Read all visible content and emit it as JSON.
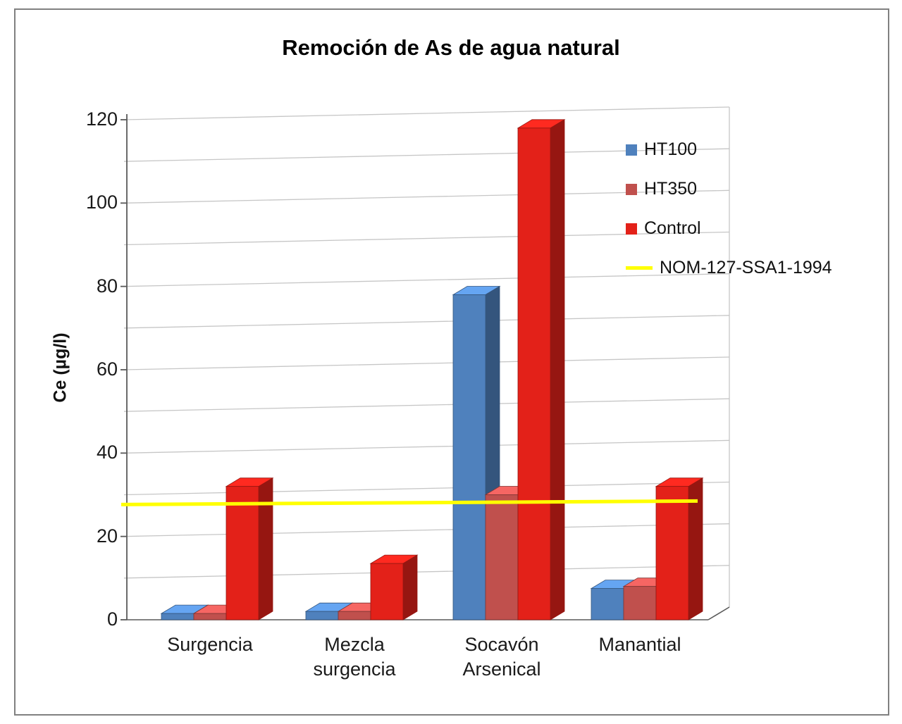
{
  "page": {
    "background": "#ffffff",
    "frame_border_color": "#808080"
  },
  "chart_data": {
    "type": "bar",
    "style": "3d-clustered-column",
    "title": "Remoción de As de agua natural",
    "xlabel": "",
    "ylabel": "Ce (µg/l)",
    "ylim": [
      0,
      120
    ],
    "ytick_step": 20,
    "minor_grid_step": 10,
    "grid": true,
    "legend_position": "right-top",
    "categories": [
      "Surgencia",
      "Mezcla surgencia",
      "Socavón Arsenical",
      "Manantial"
    ],
    "series": [
      {
        "name": "HT100",
        "color": "#4F81BD",
        "values": [
          1.5,
          2,
          78,
          7.5
        ]
      },
      {
        "name": "HT350",
        "color": "#C0504D",
        "values": [
          1.5,
          2,
          30,
          8
        ]
      },
      {
        "name": "Control",
        "color": "#E32119",
        "values": [
          32,
          13.5,
          118,
          32
        ]
      }
    ],
    "reference_line": {
      "name": "NOM-127-SSA1-1994",
      "value": 28,
      "color": "#FFFF00"
    },
    "colors": {
      "gridline": "#C6C6C6",
      "axis": "#595959",
      "text": "#1a1a1a"
    }
  }
}
